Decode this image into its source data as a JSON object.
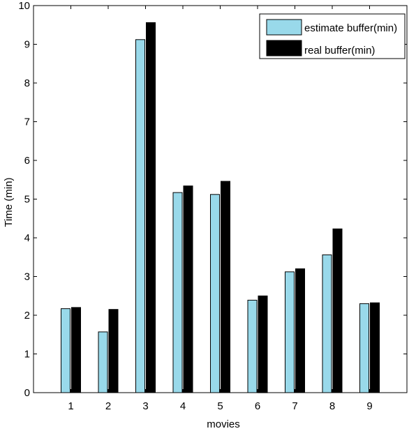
{
  "chart_data": {
    "type": "bar",
    "title": "",
    "xlabel": "movies",
    "ylabel": "Time (min)",
    "categories": [
      "1",
      "2",
      "3",
      "4",
      "5",
      "6",
      "7",
      "8",
      "9"
    ],
    "ylim": [
      0,
      10
    ],
    "yticks": [
      0,
      1,
      2,
      3,
      4,
      5,
      6,
      7,
      8,
      9,
      10
    ],
    "grid": false,
    "legend_position": "top-right",
    "series": [
      {
        "name": "estimate buffer(min)",
        "color": "#99D9EA",
        "values": [
          2.17,
          1.57,
          9.12,
          5.17,
          5.12,
          2.39,
          3.12,
          3.56,
          2.3
        ]
      },
      {
        "name": "real buffer(min)",
        "color": "#000000",
        "values": [
          2.2,
          2.15,
          9.56,
          5.34,
          5.46,
          2.5,
          3.2,
          4.23,
          2.32
        ]
      }
    ]
  }
}
